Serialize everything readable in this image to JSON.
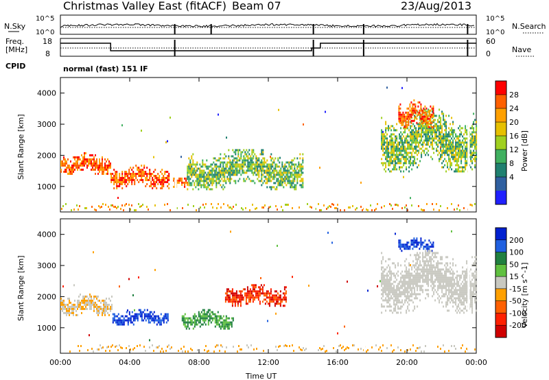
{
  "header": {
    "station": "Christmas Valley East (fitACF)",
    "beam": "Beam 07",
    "date": "23/Aug/2013"
  },
  "top_panels": {
    "nsky_label": "N.Sky",
    "nsky_ticks": [
      "10^5",
      "10^0"
    ],
    "nsearch_ticks": [
      "10^5",
      "10^0"
    ],
    "nsearch_label": "N.Search",
    "freq_label_1": "Freq.",
    "freq_label_2": "[MHz]",
    "freq_ticks": [
      "18",
      "8"
    ],
    "nave_ticks": [
      "60",
      "0"
    ],
    "nave_label": "Nave",
    "cpid_label": "CPID",
    "cpid_text": "normal (fast) 151 IF"
  },
  "chart_data": [
    {
      "type": "heatmap",
      "title": "",
      "xlabel": "",
      "ylabel": "Slant Range [km]",
      "x_ticks": [
        "00:00",
        "04:00",
        "08:00",
        "12:00",
        "16:00",
        "20:00",
        "00:00"
      ],
      "x_range_hours": [
        0,
        24
      ],
      "y_ticks": [
        1000,
        2000,
        3000,
        4000
      ],
      "ylim": [
        180,
        4500
      ],
      "colorbar": {
        "label": "Power [dB]",
        "ticks": [
          "28",
          "24",
          "20",
          "16",
          "12",
          "8",
          "4"
        ],
        "colors": [
          "#ff0000",
          "#ff6000",
          "#ffa000",
          "#e6c000",
          "#a0d020",
          "#40b060",
          "#208070",
          "#3060a0",
          "#2020ff"
        ]
      },
      "features": [
        {
          "hours": [
            0,
            2.9
          ],
          "range_km": [
            1400,
            2100
          ],
          "level": "high"
        },
        {
          "hours": [
            2.9,
            6.3
          ],
          "range_km": [
            950,
            1700
          ],
          "level": "high"
        },
        {
          "hours": [
            6.5,
            7.3
          ],
          "range_km": [
            1000,
            1350
          ],
          "level": "high"
        },
        {
          "hours": [
            7.3,
            14.0
          ],
          "range_km": [
            900,
            2200
          ],
          "level": "medium"
        },
        {
          "hours": [
            18.5,
            24
          ],
          "range_km": [
            1500,
            3500
          ],
          "level": "medium"
        },
        {
          "hours": [
            19.5,
            21.5
          ],
          "range_km": [
            2900,
            3800
          ],
          "level": "high"
        }
      ]
    },
    {
      "type": "heatmap",
      "title": "",
      "xlabel": "Time UT",
      "ylabel": "Slant Range [km]",
      "x_ticks": [
        "00:00",
        "04:00",
        "08:00",
        "12:00",
        "16:00",
        "20:00",
        "00:00"
      ],
      "x_range_hours": [
        0,
        24
      ],
      "y_ticks": [
        1000,
        2000,
        3000,
        4000
      ],
      "ylim": [
        180,
        4500
      ],
      "colorbar": {
        "label": "Velocity [m s^-1]",
        "ticks": [
          "200",
          "100",
          "50",
          "15",
          "-15",
          "-50",
          "-100",
          "-200"
        ],
        "colors": [
          "#0020d0",
          "#2060e0",
          "#208040",
          "#60c040",
          "#c8c8c0",
          "#ffa000",
          "#ff6000",
          "#ff2000",
          "#d00000"
        ]
      },
      "features": [
        {
          "hours": [
            0,
            3.0
          ],
          "range_km": [
            1400,
            2100
          ],
          "level": "gray/orange"
        },
        {
          "hours": [
            3.0,
            6.2
          ],
          "range_km": [
            1100,
            1600
          ],
          "level": "blue"
        },
        {
          "hours": [
            7.0,
            10.0
          ],
          "range_km": [
            1000,
            1600
          ],
          "level": "green"
        },
        {
          "hours": [
            9.5,
            13.0
          ],
          "range_km": [
            1700,
            2400
          ],
          "level": "red"
        },
        {
          "hours": [
            19.5,
            21.5
          ],
          "range_km": [
            3500,
            3900
          ],
          "level": "blue"
        },
        {
          "hours": [
            18.5,
            24
          ],
          "range_km": [
            1500,
            3500
          ],
          "level": "gray"
        }
      ]
    }
  ]
}
